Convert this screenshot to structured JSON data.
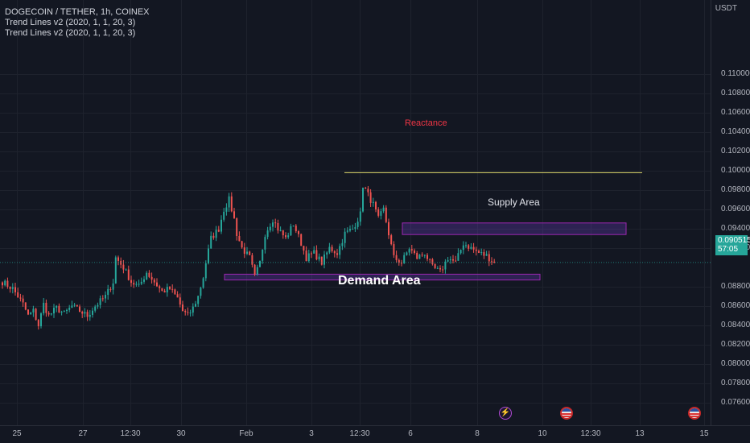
{
  "header": {
    "symbol_line": "DOGECOIN / TETHER, 1h, COINEX",
    "indicators": [
      "Trend Lines v2 (2020, 1, 1, 20, 3)",
      "Trend Lines v2 (2020, 1, 1, 20, 3)"
    ]
  },
  "price_axis": {
    "unit": "USDT",
    "ticks": [
      "0.110000",
      "0.108000",
      "0.106000",
      "0.104000",
      "0.102000",
      "0.100000",
      "0.098000",
      "0.096000",
      "0.094000",
      "0.092000",
      "0.088000",
      "0.086000",
      "0.084000",
      "0.082000",
      "0.080000",
      "0.078000",
      "0.076000"
    ],
    "current_price": "0.090515",
    "countdown": "57:05"
  },
  "time_axis": {
    "ticks": [
      "25",
      "27",
      "12:30",
      "30",
      "Feb",
      "3",
      "12:30",
      "6",
      "8",
      "10",
      "12:30",
      "13",
      "15"
    ]
  },
  "annotations": {
    "resistance_label": "Reactance",
    "supply_label": "Supply Area",
    "demand_label": "Demand Area"
  },
  "colors": {
    "background": "#131722",
    "up_candle": "#26a69a",
    "down_candle": "#ef5350",
    "resistance_line": "#e0d96b",
    "resistance_text": "#f23645",
    "zone_border": "#9c27b0",
    "zone_fill": "rgba(103,58,183,0.32)"
  },
  "events": [
    "lightning-event-icon",
    "us-flag-event-icon",
    "us-flag-event-icon"
  ],
  "chart_data": {
    "type": "candlestick",
    "title": "DOGECOIN / TETHER, 1h, COINEX",
    "ylabel": "USDT",
    "ylim": [
      0.0745,
      0.1122
    ],
    "path_points": [
      [
        0,
        0.0885
      ],
      [
        4,
        0.0878
      ],
      [
        8,
        0.0862
      ],
      [
        10,
        0.085
      ],
      [
        12,
        0.0855
      ],
      [
        14,
        0.084
      ],
      [
        16,
        0.0862
      ],
      [
        18,
        0.085
      ],
      [
        21,
        0.0858
      ],
      [
        24,
        0.0852
      ],
      [
        27,
        0.086
      ],
      [
        30,
        0.0855
      ],
      [
        33,
        0.085
      ],
      [
        36,
        0.086
      ],
      [
        40,
        0.087
      ],
      [
        43,
        0.0885
      ],
      [
        44,
        0.091
      ],
      [
        47,
        0.09
      ],
      [
        50,
        0.0885
      ],
      [
        53,
        0.088
      ],
      [
        56,
        0.0895
      ],
      [
        59,
        0.0885
      ],
      [
        62,
        0.0875
      ],
      [
        65,
        0.0878
      ],
      [
        68,
        0.0868
      ],
      [
        70,
        0.0855
      ],
      [
        72,
        0.085
      ],
      [
        74,
        0.0858
      ],
      [
        76,
        0.087
      ],
      [
        78,
        0.089
      ],
      [
        79,
        0.0905
      ],
      [
        81,
        0.093
      ],
      [
        84,
        0.094
      ],
      [
        86,
        0.096
      ],
      [
        88,
        0.097
      ],
      [
        90,
        0.095
      ],
      [
        91,
        0.0935
      ],
      [
        93,
        0.092
      ],
      [
        96,
        0.091
      ],
      [
        98,
        0.089
      ],
      [
        100,
        0.0905
      ],
      [
        102,
        0.0935
      ],
      [
        105,
        0.095
      ],
      [
        107,
        0.094
      ],
      [
        110,
        0.093
      ],
      [
        113,
        0.0945
      ],
      [
        116,
        0.0925
      ],
      [
        118,
        0.091
      ],
      [
        121,
        0.0915
      ],
      [
        124,
        0.0905
      ],
      [
        127,
        0.092
      ],
      [
        130,
        0.0915
      ],
      [
        133,
        0.0935
      ],
      [
        136,
        0.094
      ],
      [
        139,
        0.0955
      ],
      [
        140,
        0.0985
      ],
      [
        142,
        0.0975
      ],
      [
        144,
        0.0965
      ],
      [
        146,
        0.095
      ],
      [
        148,
        0.096
      ],
      [
        150,
        0.0935
      ],
      [
        152,
        0.091
      ],
      [
        155,
        0.0905
      ],
      [
        158,
        0.092
      ],
      [
        161,
        0.091
      ],
      [
        164,
        0.0915
      ],
      [
        167,
        0.09
      ],
      [
        170,
        0.0895
      ],
      [
        173,
        0.091
      ],
      [
        176,
        0.0905
      ],
      [
        179,
        0.0925
      ],
      [
        182,
        0.092
      ],
      [
        185,
        0.0915
      ],
      [
        188,
        0.0912
      ],
      [
        191,
        0.0905
      ]
    ],
    "resistance_level": 0.0998,
    "supply_zone": [
      0.0934,
      0.0946
    ],
    "demand_zone": [
      0.0887,
      0.0893
    ],
    "last_price": 0.090515,
    "grid": true
  }
}
